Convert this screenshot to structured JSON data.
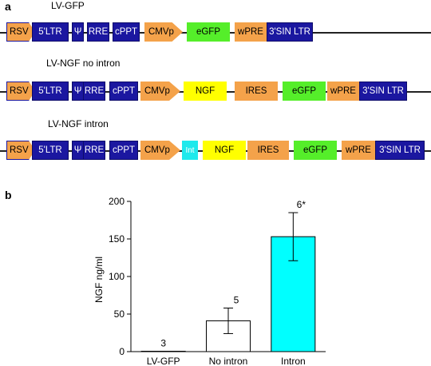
{
  "panel_a": {
    "letter": "a",
    "constructs": [
      {
        "title": "LV-GFP",
        "elements": [
          {
            "label": "RSV",
            "type": "promoter",
            "color": "#f4a24a"
          },
          {
            "label": "5'LTR",
            "type": "element",
            "color": "#1b17a0"
          },
          {
            "label": "Ψ",
            "type": "element",
            "color": "#1b17a0"
          },
          {
            "label": "RRE",
            "type": "element",
            "color": "#1b17a0"
          },
          {
            "label": "cPPT",
            "type": "element",
            "color": "#1b17a0"
          },
          {
            "label": "CMVp",
            "type": "promoter",
            "color": "#f4a24a"
          },
          {
            "label": "eGFP",
            "type": "gene",
            "color": "#55ee2a"
          },
          {
            "label": "wPRE",
            "type": "element",
            "color": "#f4a24a"
          },
          {
            "label": "3'SIN LTR",
            "type": "element",
            "color": "#1b17a0"
          }
        ]
      },
      {
        "title": "LV-NGF no intron",
        "elements": [
          {
            "label": "RSV",
            "type": "promoter",
            "color": "#f4a24a"
          },
          {
            "label": "5'LTR",
            "type": "element",
            "color": "#1b17a0"
          },
          {
            "label": "Ψ",
            "type": "element",
            "color": "#1b17a0"
          },
          {
            "label": "RRE",
            "type": "element",
            "color": "#1b17a0"
          },
          {
            "label": "cPPT",
            "type": "element",
            "color": "#1b17a0"
          },
          {
            "label": "CMVp",
            "type": "promoter",
            "color": "#f4a24a"
          },
          {
            "label": "NGF",
            "type": "gene",
            "color": "#ffff00"
          },
          {
            "label": "IRES",
            "type": "element",
            "color": "#f4a24a"
          },
          {
            "label": "eGFP",
            "type": "gene",
            "color": "#55ee2a"
          },
          {
            "label": "wPRE",
            "type": "element",
            "color": "#f4a24a"
          },
          {
            "label": "3'SIN LTR",
            "type": "element",
            "color": "#1b17a0"
          }
        ]
      },
      {
        "title": "LV-NGF intron",
        "elements": [
          {
            "label": "RSV",
            "type": "promoter",
            "color": "#f4a24a"
          },
          {
            "label": "5'LTR",
            "type": "element",
            "color": "#1b17a0"
          },
          {
            "label": "Ψ",
            "type": "element",
            "color": "#1b17a0"
          },
          {
            "label": "RRE",
            "type": "element",
            "color": "#1b17a0"
          },
          {
            "label": "cPPT",
            "type": "element",
            "color": "#1b17a0"
          },
          {
            "label": "CMVp",
            "type": "promoter",
            "color": "#f4a24a"
          },
          {
            "label": "Int",
            "type": "intron",
            "color": "#1ee9ec"
          },
          {
            "label": "NGF",
            "type": "gene",
            "color": "#ffff00"
          },
          {
            "label": "IRES",
            "type": "element",
            "color": "#f4a24a"
          },
          {
            "label": "eGFP",
            "type": "gene",
            "color": "#55ee2a"
          },
          {
            "label": "wPRE",
            "type": "element",
            "color": "#f4a24a"
          },
          {
            "label": "3'SIN LTR",
            "type": "element",
            "color": "#1b17a0"
          }
        ]
      }
    ]
  },
  "panel_b": {
    "letter": "b"
  },
  "chart_data": {
    "type": "bar",
    "categories": [
      "LV-GFP",
      "No intron",
      "Intron"
    ],
    "values": [
      0.5,
      41,
      153
    ],
    "error": [
      0,
      17,
      32
    ],
    "annotations": [
      "3",
      "5",
      "6*"
    ],
    "bar_colors": [
      "#ffffff",
      "#ffffff",
      "#00ffff"
    ],
    "title": "",
    "xlabel": "",
    "ylabel": "NGF ng/ml",
    "ylim": [
      0,
      200
    ],
    "yticks": [
      0,
      50,
      100,
      150,
      200
    ],
    "grid": false
  }
}
